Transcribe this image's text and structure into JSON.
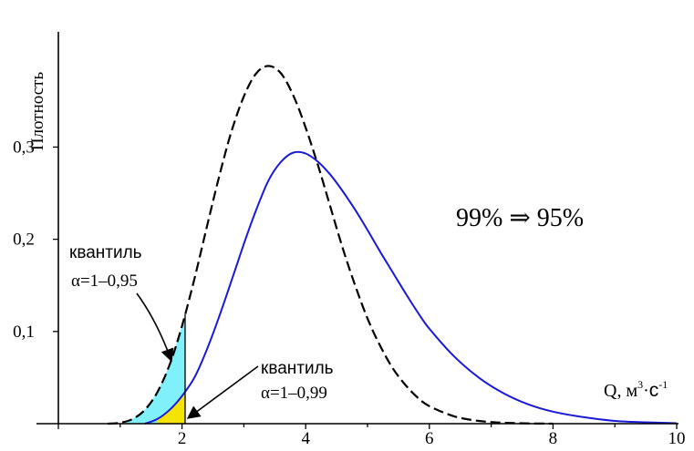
{
  "chart_data": {
    "type": "line",
    "title": "",
    "xlabel": "Q, м³·с⁻¹",
    "xlabel_parts": {
      "main": "Q, м",
      "sup1": "3",
      "dot": "·",
      "c": "с",
      "sup2": "-1"
    },
    "ylabel": "Плотность",
    "xlim": [
      0,
      10
    ],
    "ylim": [
      0,
      0.42
    ],
    "xticks": [
      {
        "value": 2,
        "label": "2"
      },
      {
        "value": 4,
        "label": "4"
      },
      {
        "value": 6,
        "label": "6"
      },
      {
        "value": 8,
        "label": "8"
      },
      {
        "value": 10,
        "label": "10"
      }
    ],
    "yticks": [
      {
        "value": 0.1,
        "label": "0,1"
      },
      {
        "value": 0.2,
        "label": "0,2"
      },
      {
        "value": 0.3,
        "label": "0,3"
      }
    ],
    "grid": false,
    "legend": "none",
    "series": [
      {
        "style": "dashed",
        "color": "#000000",
        "x": [
          0.8,
          1.0,
          1.2,
          1.4,
          1.6,
          1.8,
          2.0,
          2.2,
          2.4,
          2.6,
          2.8,
          3.0,
          3.2,
          3.4,
          3.6,
          3.8,
          4.0,
          4.2,
          4.4,
          4.6,
          4.8,
          5.0,
          5.2,
          5.4,
          5.6,
          5.8,
          6.0,
          6.4,
          6.8,
          7.2,
          7.6,
          8.0
        ],
        "y": [
          0.0,
          0.001,
          0.005,
          0.015,
          0.034,
          0.064,
          0.106,
          0.157,
          0.213,
          0.268,
          0.317,
          0.355,
          0.38,
          0.388,
          0.38,
          0.356,
          0.321,
          0.28,
          0.235,
          0.19,
          0.15,
          0.114,
          0.085,
          0.061,
          0.043,
          0.029,
          0.019,
          0.008,
          0.003,
          0.001,
          0.0003,
          0.0
        ]
      },
      {
        "style": "solid",
        "color": "#1a1ad6",
        "x": [
          1.4,
          1.6,
          1.8,
          2.0,
          2.2,
          2.4,
          2.6,
          2.8,
          3.0,
          3.2,
          3.4,
          3.6,
          3.8,
          4.0,
          4.2,
          4.4,
          4.6,
          4.8,
          5.0,
          5.2,
          5.4,
          5.6,
          5.8,
          6.0,
          6.4,
          6.8,
          7.2,
          7.6,
          8.0,
          8.5,
          9.0,
          9.5,
          10.0
        ],
        "y": [
          0.0,
          0.005,
          0.015,
          0.03,
          0.05,
          0.08,
          0.116,
          0.155,
          0.195,
          0.232,
          0.264,
          0.284,
          0.294,
          0.293,
          0.284,
          0.27,
          0.252,
          0.232,
          0.21,
          0.187,
          0.165,
          0.143,
          0.122,
          0.103,
          0.073,
          0.05,
          0.033,
          0.021,
          0.013,
          0.007,
          0.003,
          0.0015,
          0.0005
        ]
      }
    ],
    "shaded_regions": [
      {
        "under_series": 0,
        "x_from": 1.1,
        "x_to": 2.05,
        "color": "#80f0fa",
        "label": "квантиль α=1–0,95"
      },
      {
        "under_series": 1,
        "x_from": 1.6,
        "x_to": 2.05,
        "color": "#f5e400",
        "label": "квантиль α=1–0,99"
      }
    ],
    "boundary_x": 2.05,
    "annotations": {
      "percent": "99% ⇒ 95%",
      "quantile_upper_word": "квантиль",
      "quantile_upper_alpha": "α=1–0,95",
      "quantile_lower_word": "квантиль",
      "quantile_lower_alpha": "α=1–0,99"
    }
  }
}
